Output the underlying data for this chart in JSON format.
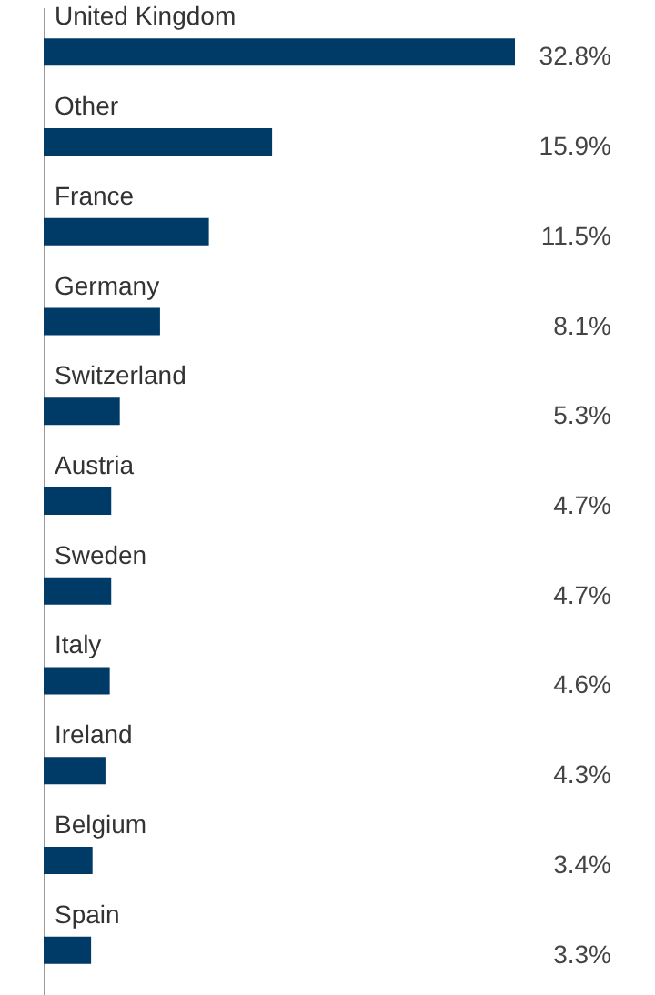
{
  "chart_data": {
    "type": "bar",
    "orientation": "horizontal",
    "categories": [
      "United Kingdom",
      "Other",
      "France",
      "Germany",
      "Switzerland",
      "Austria",
      "Sweden",
      "Italy",
      "Ireland",
      "Belgium",
      "Spain"
    ],
    "values": [
      32.8,
      15.9,
      11.5,
      8.1,
      5.3,
      4.7,
      4.7,
      4.6,
      4.3,
      3.4,
      3.3
    ],
    "value_labels": [
      "32.8%",
      "15.9%",
      "11.5%",
      "8.1%",
      "5.3%",
      "4.7%",
      "4.7%",
      "4.6%",
      "4.3%",
      "3.4%",
      "3.3%"
    ],
    "color": "#003a66"
  }
}
